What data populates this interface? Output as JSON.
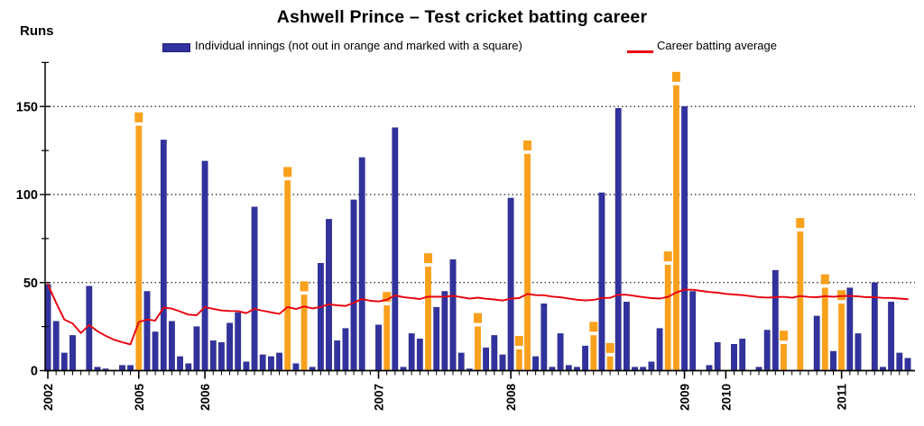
{
  "chart_data": {
    "type": "bar",
    "title": "Ashwell Prince – Test cricket batting career",
    "ylabel": "Runs",
    "xlabel": "",
    "legend_position": "top",
    "legend": {
      "innings": "Individual innings (not out in orange and marked with a square)",
      "average": "Career batting average"
    },
    "ylim": [
      0,
      175
    ],
    "yticks": [
      0,
      50,
      100,
      150
    ],
    "y_minor_ticks": [
      25,
      75,
      125,
      175
    ],
    "gridlines": [
      50,
      100,
      150
    ],
    "grid_style": "dashed",
    "x_unit": "innings (one tick per Test innings, 2002–2011)",
    "innings_runs": [
      49,
      28,
      10,
      20,
      0,
      48,
      2,
      1,
      0,
      3,
      3,
      139,
      45,
      22,
      131,
      28,
      8,
      4,
      25,
      119,
      17,
      16,
      27,
      33,
      5,
      93,
      9,
      8,
      10,
      108,
      4,
      43,
      2,
      61,
      86,
      17,
      24,
      97,
      121,
      0,
      26,
      37,
      138,
      2,
      21,
      18,
      59,
      36,
      45,
      63,
      10,
      1,
      25,
      13,
      20,
      9,
      98,
      12,
      123,
      8,
      38,
      2,
      21,
      3,
      2,
      14,
      20,
      101,
      8,
      149,
      39,
      2,
      2,
      5,
      24,
      60,
      162,
      150,
      45,
      0,
      3,
      16,
      0,
      15,
      18,
      0,
      2,
      23,
      57,
      15,
      0,
      79,
      0,
      31,
      47,
      11,
      38,
      47,
      21,
      0,
      50,
      2,
      39,
      10,
      7
    ],
    "not_out_indices": [
      12,
      30,
      32,
      42,
      47,
      53,
      58,
      59,
      67,
      69,
      76,
      77,
      90,
      92,
      95,
      97
    ],
    "years": [
      {
        "label": "2002",
        "innings": 1
      },
      {
        "label": "2005",
        "innings": 12
      },
      {
        "label": "2006",
        "innings": 20
      },
      {
        "label": "2007",
        "innings": 41
      },
      {
        "label": "2008",
        "innings": 57
      },
      {
        "label": "2009",
        "innings": 78
      },
      {
        "label": "2010",
        "innings": 83
      },
      {
        "label": "2011",
        "innings": 97
      }
    ],
    "series": [
      {
        "name": "Individual innings",
        "type": "bar"
      },
      {
        "name": "Career batting average",
        "type": "line",
        "definition": "cumulative runs divided by cumulative dismissals"
      }
    ]
  },
  "colors": {
    "bar_blue": "#32329E",
    "bar_blue_border": "#1E1E78",
    "not_out_orange": "#F9A01D",
    "average_red": "#E8000D",
    "grid": "#222222",
    "axis": "#000000",
    "background": "#FFFFFF",
    "text": "#000000"
  }
}
